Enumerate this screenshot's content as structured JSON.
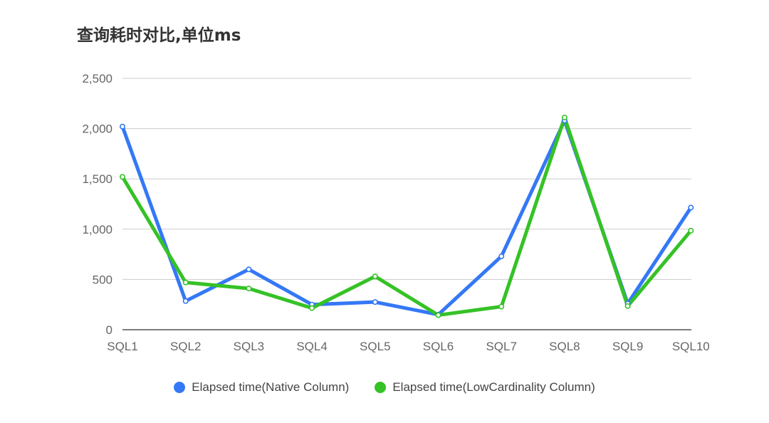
{
  "chart_data": {
    "type": "line",
    "title": "查询耗时对比,单位ms",
    "xlabel": "",
    "ylabel": "",
    "categories": [
      "SQL1",
      "SQL2",
      "SQL3",
      "SQL4",
      "SQL5",
      "SQL6",
      "SQL7",
      "SQL8",
      "SQL9",
      "SQL10"
    ],
    "ylim": [
      0,
      2500
    ],
    "yticks": [
      0,
      500,
      1000,
      1500,
      2000,
      2500
    ],
    "ytick_labels": [
      "0",
      "500",
      "1,000",
      "1,500",
      "2,000",
      "2,500"
    ],
    "grid": true,
    "legend_position": "bottom-center",
    "series": [
      {
        "name": "Elapsed time(Native Column)",
        "color": "#3478f6",
        "values": [
          2020,
          285,
          600,
          250,
          275,
          150,
          730,
          2080,
          260,
          1215
        ]
      },
      {
        "name": "Elapsed time(LowCardinality Column)",
        "color": "#35c226",
        "values": [
          1520,
          470,
          410,
          215,
          530,
          145,
          230,
          2110,
          235,
          985
        ]
      }
    ]
  }
}
